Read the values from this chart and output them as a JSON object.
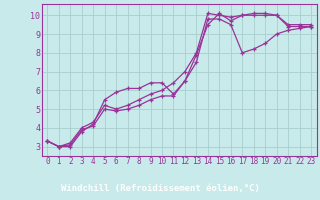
{
  "xlabel": "Windchill (Refroidissement éolien,°C)",
  "xlim": [
    -0.5,
    23.5
  ],
  "ylim": [
    2.5,
    10.6
  ],
  "yticks": [
    3,
    4,
    5,
    6,
    7,
    8,
    9,
    10
  ],
  "xticks": [
    0,
    1,
    2,
    3,
    4,
    5,
    6,
    7,
    8,
    9,
    10,
    11,
    12,
    13,
    14,
    15,
    16,
    17,
    18,
    19,
    20,
    21,
    22,
    23
  ],
  "background_color": "#c8eaea",
  "grid_color": "#a8cece",
  "line_color": "#993399",
  "xlabel_bg": "#993399",
  "xlabel_fg": "#ffffff",
  "series1_x": [
    0,
    1,
    2,
    3,
    4,
    5,
    6,
    7,
    8,
    9,
    10,
    11,
    12,
    13,
    14,
    15,
    16,
    17,
    18,
    19,
    20,
    21,
    22,
    23
  ],
  "series1_y": [
    3.3,
    3.0,
    3.0,
    3.8,
    4.2,
    5.5,
    5.9,
    6.1,
    6.1,
    6.4,
    6.4,
    5.8,
    6.5,
    7.9,
    9.5,
    10.1,
    9.7,
    10.0,
    10.1,
    10.1,
    10.0,
    9.5,
    9.5,
    9.5
  ],
  "series2_x": [
    0,
    1,
    2,
    3,
    4,
    5,
    6,
    7,
    8,
    9,
    10,
    11,
    12,
    13,
    14,
    15,
    16,
    17,
    18,
    19,
    20,
    21,
    22,
    23
  ],
  "series2_y": [
    3.3,
    3.0,
    3.2,
    4.0,
    4.3,
    5.2,
    5.0,
    5.2,
    5.5,
    5.8,
    6.0,
    6.4,
    7.0,
    8.0,
    10.1,
    10.0,
    9.9,
    10.0,
    10.0,
    10.0,
    10.0,
    9.4,
    9.4,
    9.4
  ],
  "series3_x": [
    0,
    1,
    2,
    3,
    4,
    5,
    6,
    7,
    8,
    9,
    10,
    11,
    12,
    13,
    14,
    15,
    16,
    17,
    18,
    19,
    20,
    21,
    22,
    23
  ],
  "series3_y": [
    3.3,
    3.0,
    3.1,
    3.9,
    4.1,
    5.0,
    4.9,
    5.0,
    5.2,
    5.5,
    5.7,
    5.7,
    6.5,
    7.5,
    9.8,
    9.8,
    9.5,
    8.0,
    8.2,
    8.5,
    9.0,
    9.2,
    9.3,
    9.4
  ],
  "font_family": "monospace",
  "tick_fontsize": 5.5,
  "lw": 0.9,
  "ms": 3.0
}
